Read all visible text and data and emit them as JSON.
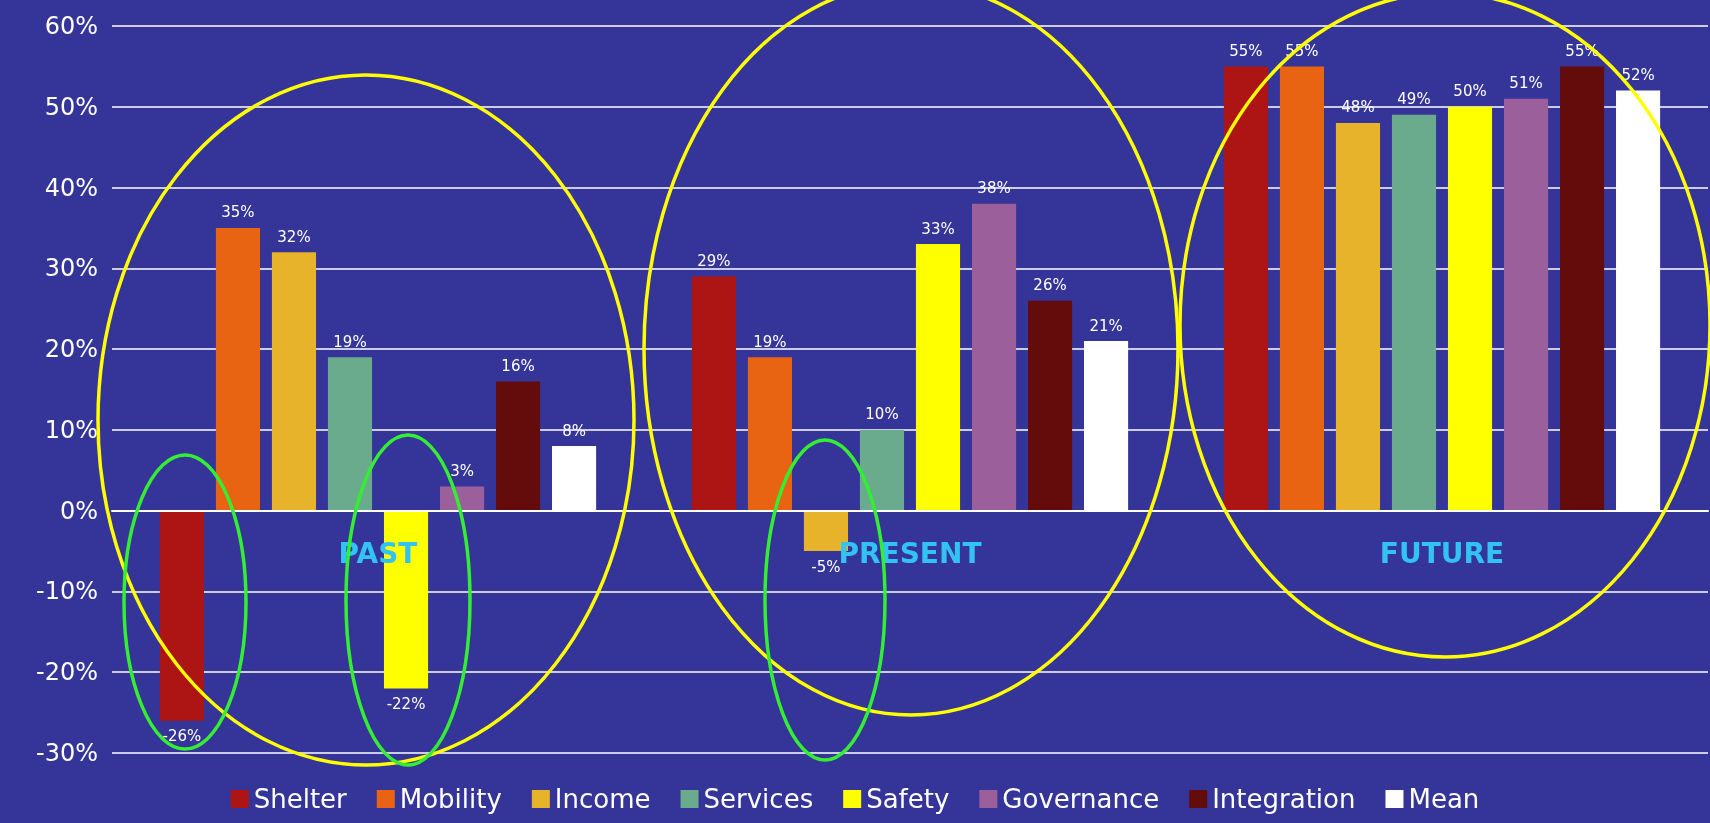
{
  "chart_data": {
    "type": "bar",
    "categories": [
      "PAST",
      "PRESENT",
      "FUTURE"
    ],
    "series": [
      {
        "name": "Shelter",
        "color": "#ad1515",
        "values": [
          -26,
          29,
          55
        ],
        "value_labels": [
          "-26%",
          "29%",
          "55%"
        ]
      },
      {
        "name": "Mobility",
        "color": "#e86412",
        "values": [
          35,
          19,
          55
        ],
        "value_labels": [
          "35%",
          "19%",
          "55%"
        ]
      },
      {
        "name": "Income",
        "color": "#e6b32a",
        "values": [
          32,
          -5,
          48
        ],
        "value_labels": [
          "32%",
          "-5%",
          "48%"
        ]
      },
      {
        "name": "Services",
        "color": "#6aab8e",
        "values": [
          19,
          10,
          49
        ],
        "value_labels": [
          "19%",
          "10%",
          "49%"
        ]
      },
      {
        "name": "Safety",
        "color": "#ffff00",
        "values": [
          -22,
          33,
          50
        ],
        "value_labels": [
          "-22%",
          "33%",
          "50%"
        ]
      },
      {
        "name": "Governance",
        "color": "#9b5f9c",
        "values": [
          3,
          38,
          51
        ],
        "value_labels": [
          "3%",
          "38%",
          "51%"
        ]
      },
      {
        "name": "Integration",
        "color": "#640c0c",
        "values": [
          16,
          26,
          55
        ],
        "value_labels": [
          "16%",
          "26%",
          "55%"
        ]
      },
      {
        "name": "Mean",
        "color": "#ffffff",
        "values": [
          8,
          21,
          52
        ],
        "value_labels": [
          "8%",
          "21%",
          "52%"
        ]
      }
    ],
    "ylim": [
      -30,
      60
    ],
    "yticks": [
      {
        "value": -30,
        "label": "-30%"
      },
      {
        "value": -20,
        "label": "-20%"
      },
      {
        "value": -10,
        "label": "-10%"
      },
      {
        "value": 0,
        "label": "0%"
      },
      {
        "value": 10,
        "label": "10%"
      },
      {
        "value": 20,
        "label": "20%"
      },
      {
        "value": 30,
        "label": "30%"
      },
      {
        "value": 40,
        "label": "40%"
      },
      {
        "value": 50,
        "label": "50%"
      },
      {
        "value": 60,
        "label": "60%"
      }
    ],
    "grid": "y",
    "legend": "bottom"
  }
}
